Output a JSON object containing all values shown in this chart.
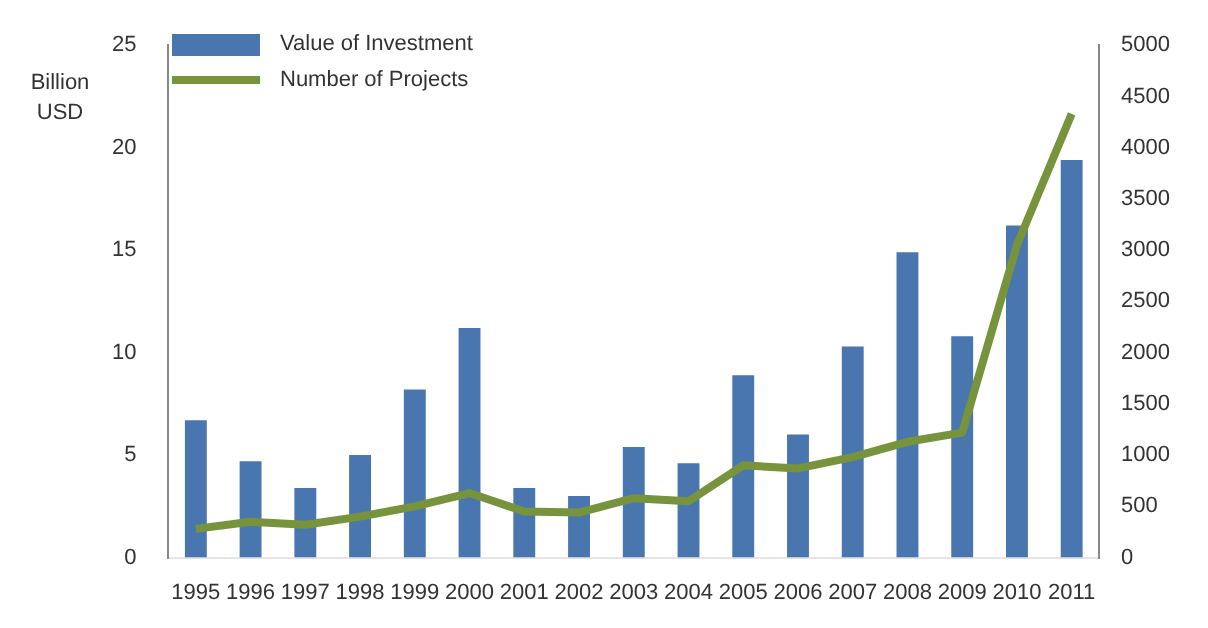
{
  "chart_data": {
    "type": "bar",
    "ylabel": "Billion USD",
    "categories": [
      "1995",
      "1996",
      "1997",
      "1998",
      "1999",
      "2000",
      "2001",
      "2002",
      "2003",
      "2004",
      "2005",
      "2006",
      "2007",
      "2008",
      "2009",
      "2010",
      "2011"
    ],
    "series": [
      {
        "name": "Value of Investment",
        "color": "#4a76b0",
        "values": [
          6.7,
          4.7,
          3.4,
          5.0,
          8.2,
          11.2,
          3.4,
          3.0,
          5.4,
          4.6,
          8.9,
          6.0,
          10.3,
          14.9,
          10.8,
          16.2,
          19.4
        ]
      },
      {
        "name": "Number of Projects",
        "type": "line",
        "axis": "y2",
        "color": "#77933c",
        "values": [
          280,
          350,
          320,
          400,
          500,
          630,
          450,
          440,
          580,
          550,
          900,
          870,
          980,
          1130,
          1220,
          3050,
          4330
        ]
      }
    ],
    "ylim": [
      0,
      25
    ],
    "yticks": [
      0,
      5,
      10,
      15,
      20,
      25
    ],
    "y2lim": [
      0,
      5000
    ],
    "y2ticks": [
      0,
      500,
      1000,
      1500,
      2000,
      2500,
      3000,
      3500,
      4000,
      4500,
      5000
    ],
    "grid": false,
    "legend": "top left",
    "marker": "none"
  }
}
